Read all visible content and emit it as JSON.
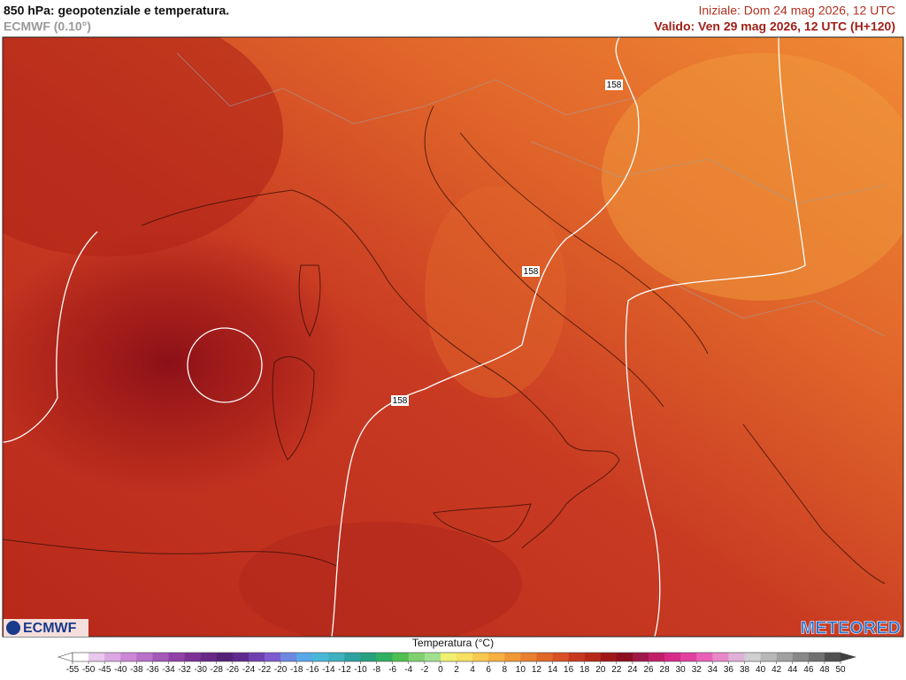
{
  "header": {
    "title": "850 hPa: geopotenziale e temperatura.",
    "model": "ECMWF (0.10°)",
    "init": "Iniziale: Dom 24 mag 2026, 12 UTC",
    "valid": "Valido: Ven 29 mag 2026, 12 UTC (H+120)"
  },
  "map": {
    "contour_labels": [
      "158",
      "158",
      "158"
    ]
  },
  "logos": {
    "left": "ECMWF",
    "right": "METEORED"
  },
  "legend": {
    "title": "Temperatura (°C)",
    "ticks": [
      -55,
      -50,
      -45,
      -40,
      -38,
      -36,
      -34,
      -32,
      -30,
      -28,
      -26,
      -24,
      -22,
      -20,
      -18,
      -16,
      -14,
      -12,
      -10,
      -8,
      -6,
      -4,
      -2,
      0,
      2,
      4,
      6,
      8,
      10,
      12,
      14,
      16,
      18,
      20,
      22,
      24,
      26,
      28,
      30,
      32,
      34,
      36,
      38,
      40,
      42,
      44,
      46,
      48,
      50
    ],
    "colors": [
      "#ffffff",
      "#e8c8ec",
      "#dca8e4",
      "#cc88d8",
      "#b870c8",
      "#a458b8",
      "#9040a8",
      "#7c3098",
      "#682888",
      "#542078",
      "#602890",
      "#7040b0",
      "#7c5cd0",
      "#6c88e0",
      "#58a8e8",
      "#48b8d8",
      "#40b0c0",
      "#30a0a0",
      "#28a080",
      "#30b060",
      "#50c050",
      "#80d070",
      "#a0e090",
      "#f0f070",
      "#f8e060",
      "#f8c850",
      "#f8b040",
      "#f09838",
      "#e88030",
      "#e06828",
      "#d85024",
      "#c83820",
      "#b82818",
      "#a01818",
      "#8c1020",
      "#a01848",
      "#c02068",
      "#d82888",
      "#e040a0",
      "#e860b8",
      "#e888c8",
      "#e0b0d8",
      "#d0d0d0",
      "#b8b8b8",
      "#a0a0a0",
      "#888888",
      "#707070",
      "#505050"
    ]
  }
}
